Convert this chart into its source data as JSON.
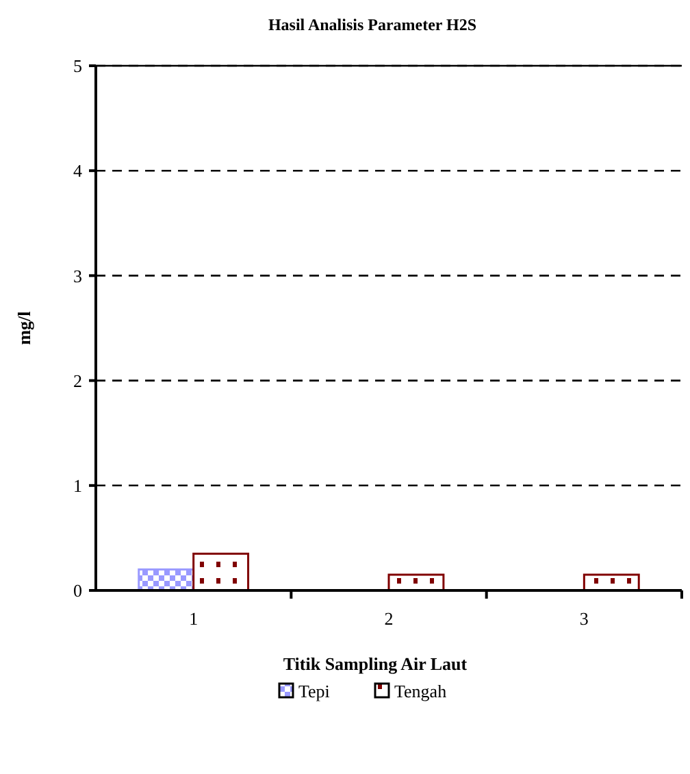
{
  "chart_data": {
    "type": "bar",
    "title": "Hasil Analisis Parameter H2S",
    "xlabel": "Titik Sampling Air Laut",
    "ylabel": "mg/l",
    "categories": [
      "1",
      "2",
      "3"
    ],
    "series": [
      {
        "name": "Tepi",
        "color": "#9999ff",
        "values": [
          0.2,
          0,
          0
        ]
      },
      {
        "name": "Tengah",
        "color": "#800000",
        "values": [
          0.35,
          0.15,
          0.15
        ]
      }
    ],
    "ylim": [
      0,
      5
    ],
    "yticks": [
      0,
      1,
      2,
      3,
      4,
      5
    ],
    "grid": "y",
    "legend": "bottom"
  }
}
